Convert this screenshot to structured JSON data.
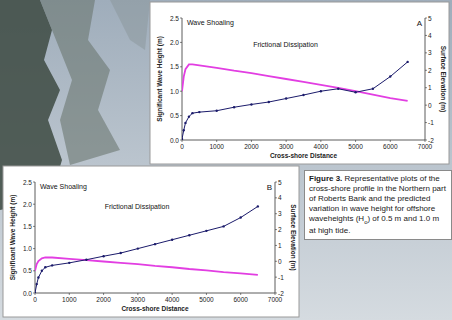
{
  "chart_data": [
    {
      "type": "line",
      "label": "A",
      "grid": false,
      "annotations": [
        "Wave Shoaling",
        "Frictional Dissipation"
      ],
      "x_label": "Cross-shore Distance",
      "y_label": "Significant Wave Height (m)",
      "y2_label": "Surface Elevation (m)",
      "xlim": [
        0,
        7000
      ],
      "xticks": [
        0,
        1000,
        2000,
        3000,
        4000,
        5000,
        6000,
        7000
      ],
      "ylim": [
        0,
        2.5
      ],
      "yticks": [
        {
          "value": 0,
          "label": "0.0"
        },
        {
          "value": 0.5,
          "label": "0.5"
        },
        {
          "value": 1,
          "label": "1.0"
        },
        {
          "value": 1.5,
          "label": "1.5"
        },
        {
          "value": 2,
          "label": "2.0"
        },
        {
          "value": 2.5,
          "label": "2.5"
        }
      ],
      "y2lim": [
        -2,
        5
      ],
      "y2ticks": [
        -2,
        -1,
        0,
        1,
        2,
        3,
        4,
        5
      ],
      "x": [
        0,
        50,
        100,
        200,
        300,
        500,
        1000,
        1500,
        2000,
        2500,
        3000,
        3500,
        4000,
        4500,
        5000,
        5500,
        6000,
        6500
      ],
      "series": [
        {
          "color": "#e23ee2",
          "line_style": "solid",
          "values": [
            1.0,
            1.3,
            1.45,
            1.55,
            1.55,
            1.53,
            1.48,
            1.42,
            1.37,
            1.31,
            1.25,
            1.19,
            1.13,
            1.07,
            1.0,
            0.93,
            0.86,
            0.8
          ]
        },
        {
          "color": "#1b1b6b",
          "axis": "y2",
          "marker": "circle",
          "line_style": "solid",
          "values": [
            -1.94,
            -1.44,
            -1.02,
            -0.66,
            -0.46,
            -0.4,
            -0.32,
            -0.12,
            0.04,
            0.18,
            0.38,
            0.58,
            0.8,
            0.94,
            0.74,
            0.94,
            1.64,
            2.48
          ]
        }
      ]
    },
    {
      "type": "line",
      "label": "B",
      "grid": false,
      "annotations": [
        "Wave Shoaling",
        "Frictional Dissipation"
      ],
      "x_label": "Cross-shore Distance",
      "y_label": "Significant Wave Height (m)",
      "y2_label": "Surface Elevation (m)",
      "xlim": [
        0,
        7000
      ],
      "xticks": [
        0,
        1000,
        2000,
        3000,
        4000,
        5000,
        6000,
        7000
      ],
      "ylim": [
        0,
        2.5
      ],
      "yticks": [
        {
          "value": 0,
          "label": "0.0"
        },
        {
          "value": 0.5,
          "label": "0.5"
        },
        {
          "value": 1,
          "label": "1.0"
        },
        {
          "value": 1.5,
          "label": "1.5"
        },
        {
          "value": 2,
          "label": "2.0"
        },
        {
          "value": 2.5,
          "label": "2.5"
        }
      ],
      "y2lim": [
        -2,
        5
      ],
      "y2ticks": [
        -2,
        -1,
        0,
        1,
        2,
        3,
        4,
        5
      ],
      "x": [
        0,
        50,
        100,
        200,
        300,
        500,
        1000,
        1500,
        2000,
        2500,
        3000,
        3500,
        4000,
        4500,
        5000,
        5500,
        6000,
        6500
      ],
      "series": [
        {
          "color": "#e23ee2",
          "line_style": "solid",
          "values": [
            0.5,
            0.65,
            0.72,
            0.78,
            0.8,
            0.8,
            0.77,
            0.74,
            0.71,
            0.68,
            0.65,
            0.61,
            0.58,
            0.54,
            0.51,
            0.47,
            0.44,
            0.41
          ]
        },
        {
          "color": "#1b1b6b",
          "axis": "y2",
          "marker": "circle",
          "line_style": "solid",
          "values": [
            -2,
            -1.44,
            -1.02,
            -0.6,
            -0.38,
            -0.26,
            -0.1,
            0.1,
            0.32,
            0.52,
            0.8,
            1.08,
            1.36,
            1.64,
            1.92,
            2.2,
            2.76,
            3.46
          ]
        }
      ]
    }
  ],
  "caption": {
    "label": "Figure 3.",
    "text": "Representative plots of the cross-shore profile in the Northern part of Roberts Bank and the predicted variation in wave height for offshore waveheights (H",
    "subscript": "o",
    "text_end": ") of 0.5 m and 1.0 m at high tide."
  }
}
